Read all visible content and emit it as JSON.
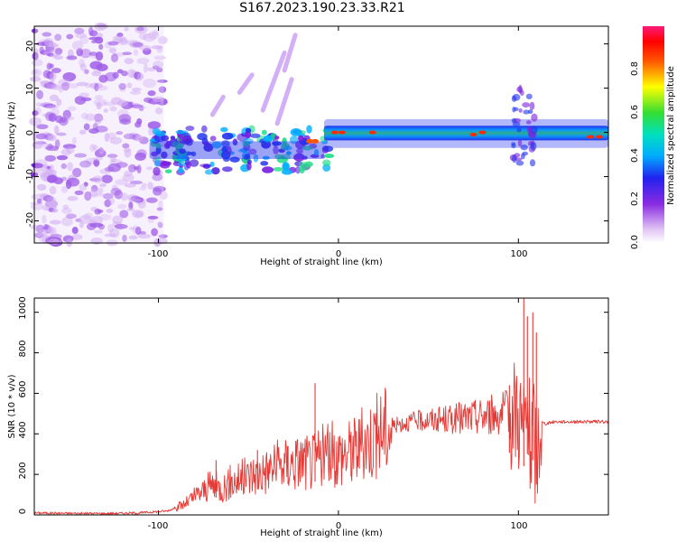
{
  "title": "S167.2023.190.23.33.R21",
  "colorbar": {
    "label": "Normalized spectral amplitude",
    "ticks": [
      "0.0",
      "0.2",
      "0.4",
      "0.6",
      "0.8"
    ]
  },
  "chart_data": [
    {
      "type": "heatmap",
      "xlabel": "Height of straight line (km)",
      "ylabel": "Frequency (Hz)",
      "xlim": [
        -169,
        150
      ],
      "ylim": [
        -25,
        24
      ],
      "xticks": [
        "-100",
        "0",
        "100"
      ],
      "yticks": [
        "-20",
        "-10",
        "0",
        "10",
        "20"
      ],
      "colormap": "rainbow (purple → blue → cyan → green → yellow → red → magenta)",
      "note_visible": "noise region below -105 km; ridge near 0 Hz from -105 to 150 km"
    },
    {
      "type": "line",
      "xlabel": "Height of straight line (km)",
      "ylabel": "SNR (10 * v/v)",
      "xlim": [
        -169,
        150
      ],
      "ylim": [
        0,
        1070
      ],
      "xticks": [
        "-100",
        "0",
        "100"
      ],
      "yticks": [
        "0",
        "200",
        "400",
        "600",
        "800",
        "1000"
      ],
      "color": "#e53935",
      "x": [
        -169,
        -150,
        -130,
        -110,
        -95,
        -85,
        -80,
        -75,
        -70,
        -65,
        -60,
        -55,
        -50,
        -45,
        -40,
        -35,
        -30,
        -25,
        -20,
        -15,
        -12,
        -10,
        -5,
        0,
        5,
        10,
        15,
        20,
        25,
        30,
        40,
        50,
        60,
        70,
        80,
        85,
        90,
        95,
        100,
        103,
        105,
        107,
        108,
        110,
        112,
        115,
        120,
        130,
        140,
        150
      ],
      "values": [
        10,
        8,
        7,
        10,
        20,
        55,
        90,
        120,
        150,
        130,
        160,
        175,
        190,
        210,
        220,
        240,
        250,
        260,
        270,
        260,
        280,
        290,
        300,
        300,
        310,
        330,
        360,
        390,
        420,
        440,
        460,
        470,
        470,
        480,
        490,
        495,
        500,
        510,
        520,
        400,
        500,
        300,
        450,
        250,
        460,
        450,
        460,
        460,
        460,
        460
      ],
      "peaks_x": [
        -68,
        -45,
        -28,
        -13,
        7,
        95,
        103,
        105,
        108,
        110
      ],
      "peaks_y": [
        270,
        320,
        340,
        650,
        410,
        640,
        1070,
        980,
        1000,
        900
      ]
    }
  ]
}
